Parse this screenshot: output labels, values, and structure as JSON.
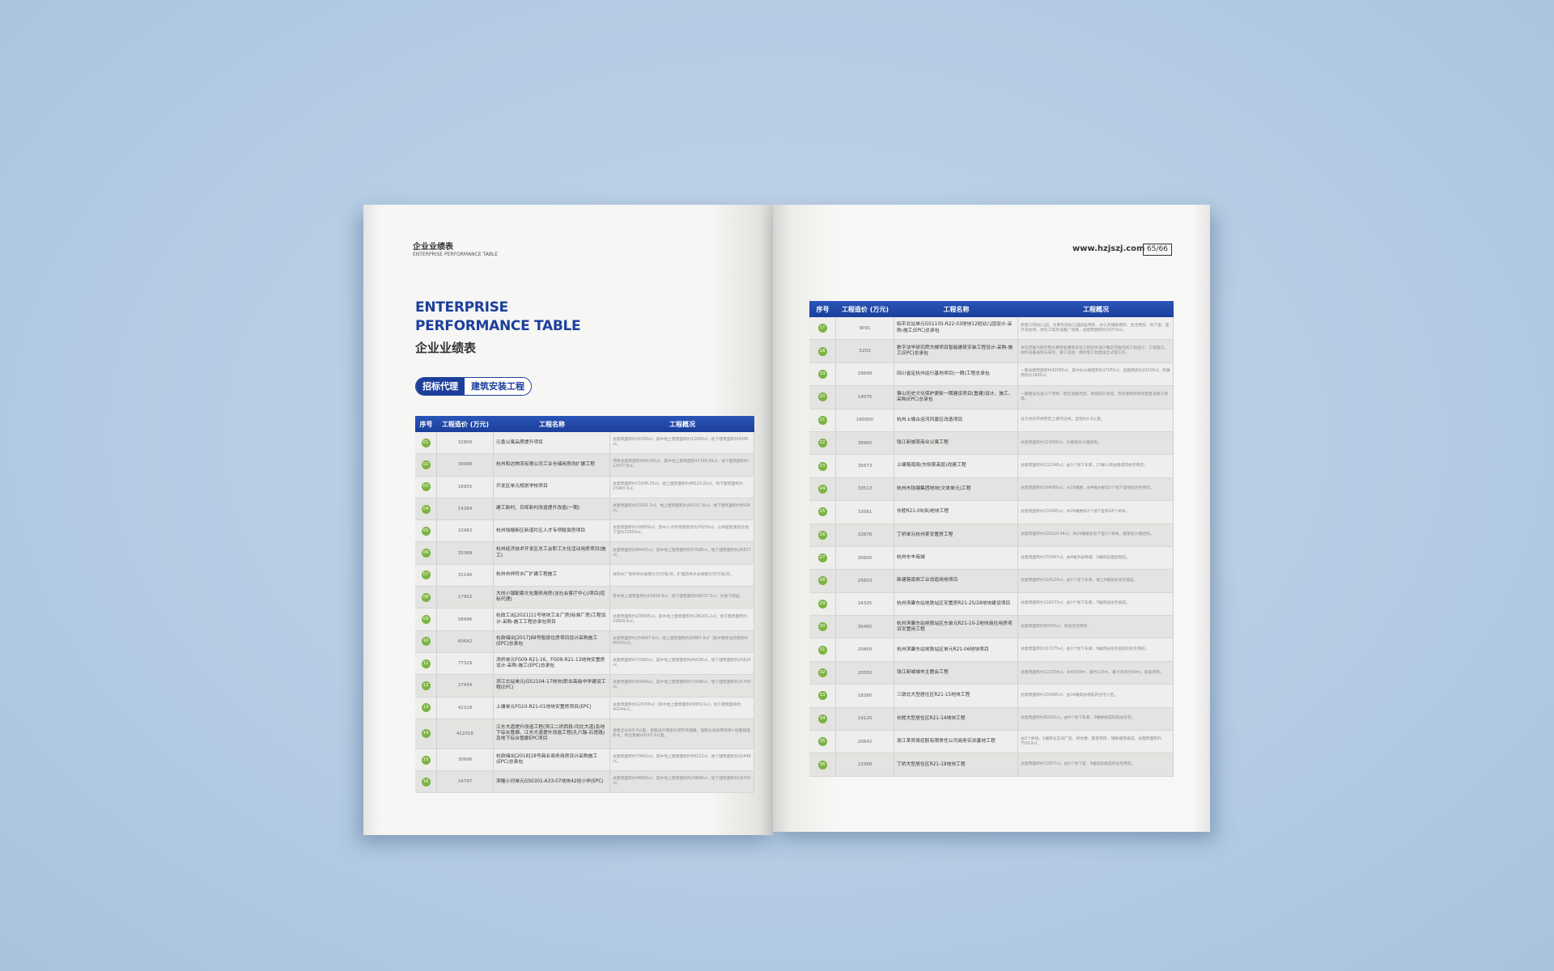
{
  "left_page": {
    "header_cn": "企业业绩表",
    "header_en": "ENTERPRISE PERFORMANCE TABLE",
    "title_en_line1": "ENTERPRISE",
    "title_en_line2": "PERFORMANCE TABLE",
    "title_cn": "企业业绩表",
    "tabs": [
      "招标代理",
      "建筑安装工程"
    ],
    "table": {
      "columns": [
        "序号",
        "工程造价 (万元)",
        "工程名称",
        "工程概况"
      ],
      "rows": [
        [
          "01",
          "32800",
          "沁香公寓品质提升项目",
          "总建筑面积约16300㎡，其中地上建筑面积约12000㎡，地下建筑面积约4300㎡。"
        ],
        [
          "02",
          "30068",
          "杭州和达物流有限公司工业仓储用房改扩建工程",
          "项目总建筑面积约60166㎡，其中地上建筑面积47185.66㎡，地下建筑面积约12977.8㎡。"
        ],
        [
          "03",
          "16955",
          "开发区单元规划学校项目",
          "总建筑面积约71606.33㎡，地上建筑面积约48123.03㎡，地下建筑面积约23483.3㎡。"
        ],
        [
          "04",
          "14264",
          "建工新村、日晖新村改造提升改造(一期)",
          "总建筑面积约33161.3㎡，地上建筑面积约24233.16㎡，地下建筑面积约8928㎡。"
        ],
        [
          "05",
          "22962",
          "杭州钱塘新区新道片区人才专项租赁房项目",
          "总建筑面积约108850㎡，其中人才专项租赁房约76250㎡，公共配套用房及地下室约32600㎡。"
        ],
        [
          "06",
          "35368",
          "杭州经济技术开发区总工会职工文化活动用房项目(施工)",
          "总建筑面积约84425㎡，其中地上建筑面积约57588㎡，地下建筑面积约26837㎡。"
        ],
        [
          "07",
          "31146",
          "杭州市祥符水厂扩建工程施工",
          "祥符水厂现有供水规模为10万吨/日，扩建后供水总规模为30万吨/日。"
        ],
        [
          "08",
          "17952",
          "大创小镇配套文化服务用房(含社会客厅中心)项目(招标代理)",
          "其中地上建筑面积约19958.8㎡，地下建筑面积约8537.3㎡，为地下两层。"
        ],
        [
          "09",
          "58496",
          "杭政工出[2021]11号地块工业厂房(标准厂房)工程设计-采购-施工工程总承包项目",
          "总建筑面积约206005㎡，其中地上建筑面积约196201.2㎡，地下建筑面积约19808.6㎡。"
        ],
        [
          "10",
          "60642",
          "杭政储出[2017]68号租赁住房项目设计采购施工(EPC)总承包",
          "总建筑面积约159697.9㎡，地上建筑面积约90887.8㎡（其中租赁住房用房约85000㎡）。"
        ],
        [
          "11",
          "77329",
          "滨桥单元FG09-R21-16、FG09-R21-13地块安置房设计-采购-施工(EPC)总承包",
          "总建筑面积约71660㎡，其中地上建筑面积约46036㎡，地下建筑面积约25624㎡。"
        ],
        [
          "12",
          "27434",
          "滨江北站单元(GS1104-17地块)职业高级中学建设工程(EPC)",
          "总建筑面积约93840㎡，其中地上建筑面积约72098㎡，地下建筑面积约21700㎡。"
        ],
        [
          "13",
          "42218",
          "上塘单元FG10-R21-01地块安置房项目(EPC)",
          "总建筑面积约126700㎡（其中地上建筑面积约86512㎡，地下建筑面积约40244㎡）。"
        ],
        [
          "14",
          "412018",
          "江东大道提升改造工程(滨江二桥西段-同北大道)及地下综合管廊、江东大道提升改造工程(孔六路-石塔路)及地下综合管廊EPC项目",
          "道路全长约9.4公里，道路设计等级为城市快速路，道路主线采用高架+地面辅道形式，综合管廊长约10.9公里。"
        ],
        [
          "15",
          "30666",
          "杭政储出[2018]18号商业商务用房设计采购施工(EPC)总承包",
          "总建筑面积约70662㎡，其中地上建筑面积约48213㎡，地下建筑面积约22449㎡。"
        ],
        [
          "16",
          "24797",
          "滨隆小河单元GS0301-A33-07地块42班小学(EPC)",
          "总建筑面积约48600㎡，其中地上建筑面积约29888㎡，地下建筑面积约18700㎡。"
        ]
      ]
    }
  },
  "right_page": {
    "url": "www.hzjszj.com",
    "page_number": "65/66",
    "table": {
      "columns": [
        "序号",
        "工程造价 (万元)",
        "工程名称",
        "工程概况"
      ],
      "rows": [
        [
          "17",
          "9091",
          "临平北站单元GS1105-R22-03地块12班幼儿园设计-采购-施工(EPC)总承包",
          "新建12班幼儿园，主要包括幼儿园园舍用房、办公及辅助用房、生活用房，地下室、室外活动场、绿化工程及道路广场等，总建筑面积约10370㎡。"
        ],
        [
          "18",
          "5203",
          "数字法学研究院大楼项目智能建筑安装工程设计-采购-施工(EPC)总承包",
          "本包范围为研究院大楼智能建筑安装工程初步设计确定范围内的工程设计、工程施工、材料设备采购与安装、竣工验收、保修等工程建设全过程工作。"
        ],
        [
          "19",
          "29699",
          "四川省定杭州运行基地项目(一期)工程总承包",
          "一期总建筑面积约42090㎡，其中办公楼面积约17050㎡，后勤用房约25200㎡，附属用房约1800㎡。"
        ],
        [
          "20",
          "14075",
          "萧山历史文化保护更新一期建设项目(重建)设计、施工、采购(EPC)总承包",
          "一期建设包含以下项目：街区道路改造、景观提升改造、历史建筑修缮及配套设施工程等。"
        ],
        [
          "21",
          "160000",
          "杭州上塘古运河风景区改造项目",
          "位于杭州市拱墅区上塘河沿线，全程约2.6公里。"
        ],
        [
          "22",
          "38965",
          "钱江新城某商业公寓工程",
          "总建筑面积约119000㎡，为框架剪力墙结构。"
        ],
        [
          "23",
          "35673",
          "上塘路南段(东侧某高层)改建工程",
          "总建筑面积约132148㎡，由1个地下车库、27幢小高层组成的住宅用房。"
        ],
        [
          "24",
          "33513",
          "杭州市钱塘集团地块(文体单元)工程",
          "总建筑面积约184060㎡，分10幢楼，由4幢主楼及2个地下室组成住宅用房。"
        ],
        [
          "25",
          "33061",
          "长睦R21-09(B)地块工程",
          "总建筑面积约232645㎡，共26幢楼和2个地下室和18个单体。"
        ],
        [
          "26",
          "32678",
          "丁桥单元杭州某安置房工程",
          "总建筑面积约228210.44㎡，共19幢楼及地下室2个单体，框架剪力墙结构。"
        ],
        [
          "27",
          "30600",
          "杭州东丰商城",
          "总建筑面积约155647㎡，由4幢多层商城、1幢高层酒店组成。"
        ],
        [
          "28",
          "25603",
          "新塘路南侧工业改造用地项目",
          "总建筑面积约114124㎡，由1个地下车库、地上6幢高层住宅组成。"
        ],
        [
          "29",
          "24325",
          "杭州滨康东站地铁站区安置房R21-25/28地块建设项目",
          "总建筑面积约118273㎡，由1个地下车库、7幢高层住宅组成。"
        ],
        [
          "30",
          "30465",
          "杭州滨康东站地铁站区东单元R21-10-2地块商住用房项目安置用工程",
          "总建筑面积约99550㎡，高层住宅用房。"
        ],
        [
          "31",
          "20850",
          "杭州滨康东站地铁站区单元R21-06地块项目",
          "总建筑面积约117279㎡，由1个地下车库、9幢高层住宅组成的住宅用房。"
        ],
        [
          "32",
          "20550",
          "钱江新城城市主题会工程",
          "总建筑面积约122334㎡，长约330m，宽约125m，最大开间为60m，高层结构。"
        ],
        [
          "33",
          "18280",
          "三墩北大型居住区R21-15地块工程",
          "总建筑面积约155965㎡，由14幢高层组成的住宅小区。"
        ],
        [
          "34",
          "19120",
          "长睦大型居住区R21-14地块工程",
          "总建筑面积约82632㎡，由4个地下车库、3幢楼组成的高层住宅。"
        ],
        [
          "35",
          "20642",
          "浙江某贸易控股有限责任公司商务实训基地工程",
          "由2个单体，1幢商业实训厂房、综合楼、配套用房、辅助楼等组成，总建筑面积约75919㎡。"
        ],
        [
          "36",
          "23368",
          "丁桥大型居住区R21-19地块工程",
          "总建筑面积约72657㎡，由1个地下室、5幢高层组成的住宅用房。"
        ]
      ]
    }
  }
}
